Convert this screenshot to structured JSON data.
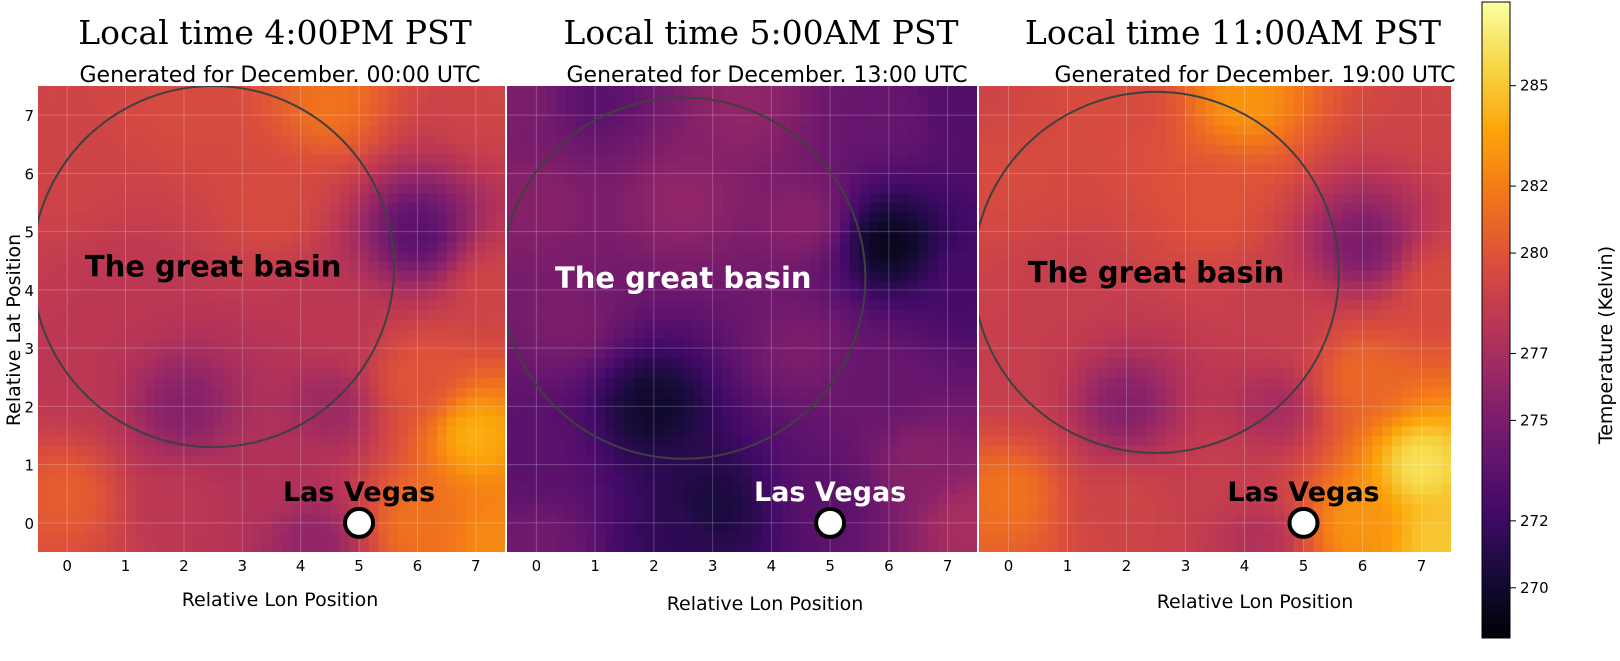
{
  "chart_data": [
    {
      "type": "heatmap",
      "title": "Local time 4:00PM PST",
      "subtitle": "Generated  for December. 00:00 UTC",
      "xlabel": "Relative Lon Position",
      "ylabel": "Relative Lat Position",
      "xlim": [
        -0.5,
        7.5
      ],
      "ylim": [
        -0.5,
        7.5
      ],
      "xticks": [
        "0",
        "1",
        "2",
        "3",
        "4",
        "5",
        "6",
        "7"
      ],
      "yticks": [
        "0",
        "1",
        "2",
        "3",
        "4",
        "5",
        "6",
        "7"
      ],
      "grid": true,
      "annotation_color": "#000000",
      "region_label": "The great basin",
      "region_circle": {
        "cx": 2.5,
        "cy": 4.4,
        "r": 3.1
      },
      "city_label": "Las Vegas",
      "city_point": {
        "x": 5,
        "y": 0
      },
      "field_anchors": [
        {
          "x": -0.5,
          "y": 7.5,
          "t": 279.0
        },
        {
          "x": 2.0,
          "y": 7.2,
          "t": 279.5
        },
        {
          "x": 4.5,
          "y": 7.2,
          "t": 281.5
        },
        {
          "x": 7.2,
          "y": 7.2,
          "t": 279.0
        },
        {
          "x": 0.0,
          "y": 6.0,
          "t": 279.0
        },
        {
          "x": 3.5,
          "y": 5.5,
          "t": 279.5
        },
        {
          "x": 6.0,
          "y": 5.0,
          "t": 273.5
        },
        {
          "x": 7.3,
          "y": 4.0,
          "t": 279.0
        },
        {
          "x": 1.0,
          "y": 4.0,
          "t": 278.0
        },
        {
          "x": 4.5,
          "y": 3.5,
          "t": 278.0
        },
        {
          "x": 0.0,
          "y": 2.5,
          "t": 278.0
        },
        {
          "x": 2.0,
          "y": 2.0,
          "t": 275.5
        },
        {
          "x": 4.5,
          "y": 2.0,
          "t": 276.5
        },
        {
          "x": 6.0,
          "y": 2.5,
          "t": 280.0
        },
        {
          "x": 7.0,
          "y": 1.5,
          "t": 284.0
        },
        {
          "x": 0.0,
          "y": 0.5,
          "t": 280.5
        },
        {
          "x": 2.0,
          "y": 0.3,
          "t": 278.0
        },
        {
          "x": 3.5,
          "y": 0.8,
          "t": 277.5
        },
        {
          "x": 4.2,
          "y": -0.3,
          "t": 276.0
        },
        {
          "x": 6.0,
          "y": 0.0,
          "t": 281.5
        },
        {
          "x": 7.3,
          "y": -0.3,
          "t": 282.5
        }
      ]
    },
    {
      "type": "heatmap",
      "title": "Local time 5:00AM PST",
      "subtitle": "Generated  for December. 13:00 UTC",
      "xlabel": "Relative Lon Position",
      "ylabel": "",
      "xlim": [
        -0.5,
        7.5
      ],
      "ylim": [
        -0.5,
        7.5
      ],
      "xticks": [
        "0",
        "1",
        "2",
        "3",
        "4",
        "5",
        "6",
        "7"
      ],
      "yticks": [],
      "grid": true,
      "annotation_color": "#ffffff",
      "region_label": "The great basin",
      "region_circle": {
        "cx": 2.5,
        "cy": 4.2,
        "r": 3.1
      },
      "city_label": "Las Vegas",
      "city_point": {
        "x": 5,
        "y": 0
      },
      "field_anchors": [
        {
          "x": -0.3,
          "y": 7.3,
          "t": 275.0
        },
        {
          "x": 1.0,
          "y": 7.3,
          "t": 273.5
        },
        {
          "x": 3.5,
          "y": 7.2,
          "t": 276.0
        },
        {
          "x": 6.0,
          "y": 7.0,
          "t": 274.0
        },
        {
          "x": 7.3,
          "y": 7.2,
          "t": 273.0
        },
        {
          "x": 0.0,
          "y": 5.5,
          "t": 275.5
        },
        {
          "x": 2.5,
          "y": 5.5,
          "t": 276.0
        },
        {
          "x": 4.5,
          "y": 5.2,
          "t": 275.5
        },
        {
          "x": 6.0,
          "y": 4.8,
          "t": 269.5
        },
        {
          "x": 7.3,
          "y": 4.0,
          "t": 272.5
        },
        {
          "x": 0.5,
          "y": 3.5,
          "t": 275.0
        },
        {
          "x": 4.5,
          "y": 3.0,
          "t": 275.0
        },
        {
          "x": 6.0,
          "y": 2.5,
          "t": 274.0
        },
        {
          "x": 2.0,
          "y": 2.0,
          "t": 270.0
        },
        {
          "x": 0.0,
          "y": 1.0,
          "t": 273.5
        },
        {
          "x": 3.0,
          "y": 0.3,
          "t": 270.5
        },
        {
          "x": 5.0,
          "y": 0.5,
          "t": 273.5
        },
        {
          "x": 6.5,
          "y": 1.0,
          "t": 275.5
        },
        {
          "x": 7.3,
          "y": 0.0,
          "t": 277.0
        },
        {
          "x": 0.0,
          "y": -0.3,
          "t": 274.5
        },
        {
          "x": 2.5,
          "y": -0.3,
          "t": 271.5
        }
      ]
    },
    {
      "type": "heatmap",
      "title": "Local time 11:00AM PST",
      "subtitle": "Generated  for December. 19:00 UTC",
      "xlabel": "Relative Lon Position",
      "ylabel": "",
      "xlim": [
        -0.5,
        7.5
      ],
      "ylim": [
        -0.5,
        7.5
      ],
      "xticks": [
        "0",
        "1",
        "2",
        "3",
        "4",
        "5",
        "6",
        "7"
      ],
      "yticks": [],
      "grid": true,
      "annotation_color": "#000000",
      "region_label": "The great basin",
      "region_circle": {
        "cx": 2.5,
        "cy": 4.3,
        "r": 3.1
      },
      "city_label": "Las Vegas",
      "city_point": {
        "x": 5,
        "y": 0
      },
      "field_anchors": [
        {
          "x": -0.5,
          "y": 7.5,
          "t": 279.0
        },
        {
          "x": 2.0,
          "y": 7.2,
          "t": 279.5
        },
        {
          "x": 4.0,
          "y": 7.3,
          "t": 283.0
        },
        {
          "x": 7.2,
          "y": 7.2,
          "t": 279.0
        },
        {
          "x": 0.0,
          "y": 6.0,
          "t": 279.5
        },
        {
          "x": 3.5,
          "y": 5.5,
          "t": 280.0
        },
        {
          "x": 6.0,
          "y": 4.8,
          "t": 275.0
        },
        {
          "x": 7.3,
          "y": 4.0,
          "t": 279.5
        },
        {
          "x": 1.0,
          "y": 4.0,
          "t": 278.5
        },
        {
          "x": 4.5,
          "y": 3.5,
          "t": 278.5
        },
        {
          "x": 0.0,
          "y": 2.5,
          "t": 278.5
        },
        {
          "x": 2.0,
          "y": 2.0,
          "t": 275.5
        },
        {
          "x": 4.5,
          "y": 2.0,
          "t": 277.0
        },
        {
          "x": 6.0,
          "y": 2.5,
          "t": 281.0
        },
        {
          "x": 7.0,
          "y": 1.0,
          "t": 286.0
        },
        {
          "x": 0.0,
          "y": 0.5,
          "t": 281.5
        },
        {
          "x": 2.0,
          "y": 0.3,
          "t": 279.0
        },
        {
          "x": 3.5,
          "y": 0.8,
          "t": 278.5
        },
        {
          "x": 4.2,
          "y": -0.3,
          "t": 277.5
        },
        {
          "x": 6.0,
          "y": 0.0,
          "t": 283.0
        },
        {
          "x": 7.3,
          "y": -0.3,
          "t": 285.0
        }
      ]
    }
  ],
  "colorbar": {
    "label": "Temperature (Kelvin)",
    "colormap": "inferno",
    "range": [
      268.5,
      287.5
    ],
    "ticks": [
      270,
      272,
      275,
      277,
      280,
      282,
      285
    ]
  },
  "colors": {
    "grid": "#ffffff",
    "circle_stroke": "#404040",
    "marker_fill": "#ffffff",
    "marker_stroke": "#000000"
  }
}
